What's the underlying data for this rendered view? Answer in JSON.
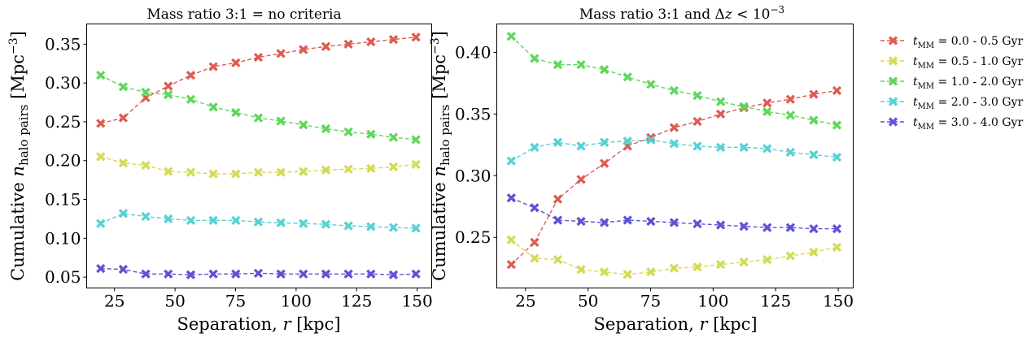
{
  "legend": {
    "location": "outside right, top",
    "entries": [
      {
        "pre": "t",
        "sub": "MM",
        "text": " = 0.0 - 0.5 Gyr",
        "color": "#dc5c50"
      },
      {
        "pre": "t",
        "sub": "MM",
        "text": " = 0.5 - 1.0 Gyr",
        "color": "#d4da54"
      },
      {
        "pre": "t",
        "sub": "MM",
        "text": " = 1.0 - 2.0 Gyr",
        "color": "#5fd65b"
      },
      {
        "pre": "t",
        "sub": "MM",
        "text": " = 2.0 - 3.0 Gyr",
        "color": "#57d1d2"
      },
      {
        "pre": "t",
        "sub": "MM",
        "text": " = 3.0 - 4.0 Gyr",
        "color": "#5d53d3"
      }
    ]
  },
  "chart_data": [
    {
      "type": "line",
      "title": "Mass ratio 3:1 = no criteria",
      "xlabel": "Separation, r [kpc]",
      "ylabel": "Cumulative n_halo pairs [Mpc^-3]",
      "xlim": [
        13.5,
        156
      ],
      "ylim": [
        0.036,
        0.376
      ],
      "xticks": [
        25,
        50,
        75,
        100,
        125,
        150
      ],
      "xtick_labels": [
        "25",
        "50",
        "75",
        "100",
        "125",
        "150"
      ],
      "yticks": [
        0.05,
        0.1,
        0.15,
        0.2,
        0.25,
        0.3,
        0.35
      ],
      "ytick_labels": [
        "0.05",
        "0.10",
        "0.15",
        "0.20",
        "0.25",
        "0.30",
        "0.35"
      ],
      "marker": "X",
      "linestyle": "dashed",
      "grid": false,
      "x": [
        19.3,
        28.6,
        37.9,
        47.2,
        56.5,
        65.8,
        75.1,
        84.4,
        93.7,
        103.0,
        112.3,
        121.6,
        130.9,
        140.2,
        149.5
      ],
      "series": [
        {
          "name": "t_MM = 0.0 - 0.5 Gyr",
          "color": "#dc5c50",
          "values": [
            0.248,
            0.255,
            0.281,
            0.296,
            0.31,
            0.321,
            0.326,
            0.333,
            0.338,
            0.343,
            0.347,
            0.35,
            0.353,
            0.356,
            0.359
          ]
        },
        {
          "name": "t_MM = 0.5 - 1.0 Gyr",
          "color": "#d4da54",
          "values": [
            0.205,
            0.197,
            0.194,
            0.186,
            0.185,
            0.183,
            0.183,
            0.185,
            0.185,
            0.186,
            0.188,
            0.189,
            0.19,
            0.192,
            0.195
          ]
        },
        {
          "name": "t_MM = 1.0 - 2.0 Gyr",
          "color": "#5fd65b",
          "values": [
            0.31,
            0.295,
            0.288,
            0.285,
            0.279,
            0.269,
            0.262,
            0.255,
            0.251,
            0.246,
            0.241,
            0.237,
            0.234,
            0.23,
            0.227
          ]
        },
        {
          "name": "t_MM = 2.0 - 3.0 Gyr",
          "color": "#57d1d2",
          "values": [
            0.119,
            0.132,
            0.128,
            0.125,
            0.123,
            0.123,
            0.123,
            0.121,
            0.12,
            0.119,
            0.118,
            0.116,
            0.115,
            0.114,
            0.113
          ]
        },
        {
          "name": "t_MM = 3.0 - 4.0 Gyr",
          "color": "#5d53d3",
          "values": [
            0.061,
            0.06,
            0.054,
            0.054,
            0.053,
            0.054,
            0.054,
            0.055,
            0.054,
            0.054,
            0.054,
            0.054,
            0.054,
            0.053,
            0.054
          ]
        }
      ]
    },
    {
      "type": "line",
      "title": "Mass ratio 3:1 and Δz < 10^-3",
      "xlabel": "Separation, r [kpc]",
      "ylabel": "Cumulative n_halo pairs [Mpc^-3]",
      "xlim": [
        13.5,
        156
      ],
      "ylim": [
        0.209,
        0.423
      ],
      "xticks": [
        25,
        50,
        75,
        100,
        125,
        150
      ],
      "xtick_labels": [
        "25",
        "50",
        "75",
        "100",
        "125",
        "150"
      ],
      "yticks": [
        0.25,
        0.3,
        0.35,
        0.4
      ],
      "ytick_labels": [
        "0.25",
        "0.30",
        "0.35",
        "0.40"
      ],
      "marker": "X",
      "linestyle": "dashed",
      "grid": false,
      "x": [
        19.3,
        28.6,
        37.9,
        47.2,
        56.5,
        65.8,
        75.1,
        84.4,
        93.7,
        103.0,
        112.3,
        121.6,
        130.9,
        140.2,
        149.5
      ],
      "series": [
        {
          "name": "t_MM = 0.0 - 0.5 Gyr",
          "color": "#dc5c50",
          "values": [
            0.228,
            0.246,
            0.281,
            0.297,
            0.31,
            0.324,
            0.331,
            0.339,
            0.344,
            0.35,
            0.355,
            0.359,
            0.362,
            0.366,
            0.369
          ]
        },
        {
          "name": "t_MM = 0.5 - 1.0 Gyr",
          "color": "#d4da54",
          "values": [
            0.248,
            0.233,
            0.232,
            0.224,
            0.222,
            0.22,
            0.222,
            0.225,
            0.226,
            0.228,
            0.23,
            0.232,
            0.235,
            0.238,
            0.242
          ]
        },
        {
          "name": "t_MM = 1.0 - 2.0 Gyr",
          "color": "#5fd65b",
          "values": [
            0.413,
            0.395,
            0.39,
            0.39,
            0.386,
            0.38,
            0.374,
            0.369,
            0.365,
            0.36,
            0.356,
            0.352,
            0.349,
            0.345,
            0.341
          ]
        },
        {
          "name": "t_MM = 2.0 - 3.0 Gyr",
          "color": "#57d1d2",
          "values": [
            0.312,
            0.323,
            0.327,
            0.324,
            0.327,
            0.328,
            0.329,
            0.326,
            0.324,
            0.323,
            0.323,
            0.322,
            0.319,
            0.317,
            0.315
          ]
        },
        {
          "name": "t_MM = 3.0 - 4.0 Gyr",
          "color": "#5d53d3",
          "values": [
            0.282,
            0.274,
            0.264,
            0.263,
            0.262,
            0.264,
            0.263,
            0.262,
            0.261,
            0.26,
            0.259,
            0.258,
            0.258,
            0.257,
            0.257
          ]
        }
      ]
    }
  ]
}
